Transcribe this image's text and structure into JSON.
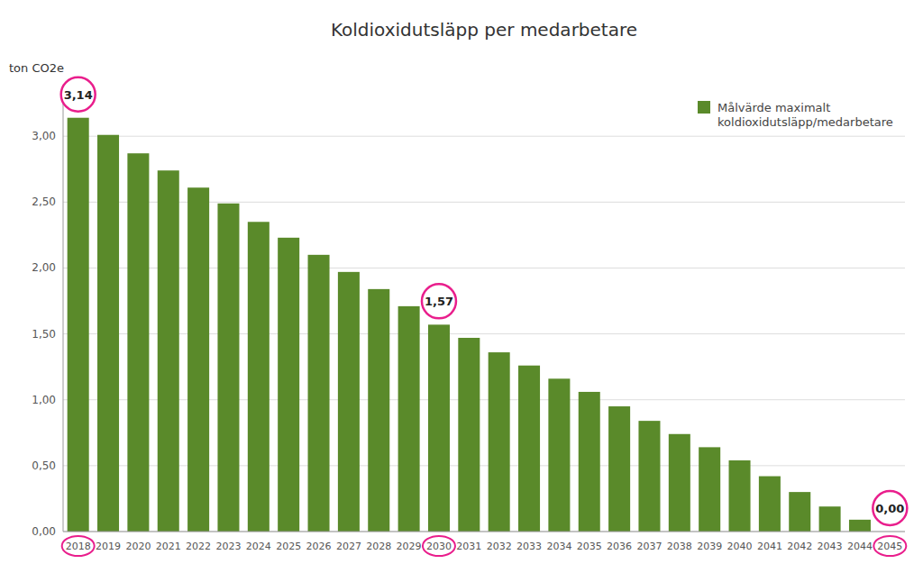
{
  "chart_data": {
    "type": "bar",
    "title": "Koldioxidutsläpp per medarbetare",
    "ylabel": "ton CO2e",
    "categories": [
      "2018",
      "2019",
      "2020",
      "2021",
      "2022",
      "2023",
      "2024",
      "2025",
      "2026",
      "2027",
      "2028",
      "2029",
      "2030",
      "2031",
      "2032",
      "2033",
      "2034",
      "2035",
      "2036",
      "2037",
      "2038",
      "2039",
      "2040",
      "2041",
      "2042",
      "2043",
      "2044",
      "2045"
    ],
    "series": [
      {
        "name": "Målvärde maximalt\nkoldioxidutsläpp/medarbetare",
        "color": "#5a8a2a",
        "values": [
          3.14,
          3.01,
          2.87,
          2.74,
          2.61,
          2.49,
          2.35,
          2.23,
          2.1,
          1.97,
          1.84,
          1.71,
          1.57,
          1.47,
          1.36,
          1.26,
          1.16,
          1.06,
          0.95,
          0.84,
          0.74,
          0.64,
          0.54,
          0.42,
          0.3,
          0.19,
          0.09,
          0.0
        ]
      }
    ],
    "annotations": [
      {
        "text": "3,14",
        "category": "2018",
        "value": 3.14,
        "color": "#e91e8c"
      },
      {
        "text": "1,57",
        "category": "2030",
        "value": 1.57,
        "color": "#e91e8c"
      },
      {
        "text": "0,00",
        "category": "2045",
        "value": 0.0,
        "color": "#e91e8c"
      }
    ],
    "ylim": [
      0,
      3.35
    ],
    "yticks": [
      {
        "value": 0.0,
        "label": "0,00"
      },
      {
        "value": 0.5,
        "label": "0,50"
      },
      {
        "value": 1.0,
        "label": "1,00"
      },
      {
        "value": 1.5,
        "label": "1,50"
      },
      {
        "value": 2.0,
        "label": "2,00"
      },
      {
        "value": 2.5,
        "label": "2,50"
      },
      {
        "value": 3.0,
        "label": "3,00"
      }
    ],
    "grid": true,
    "legend": "upper right"
  }
}
